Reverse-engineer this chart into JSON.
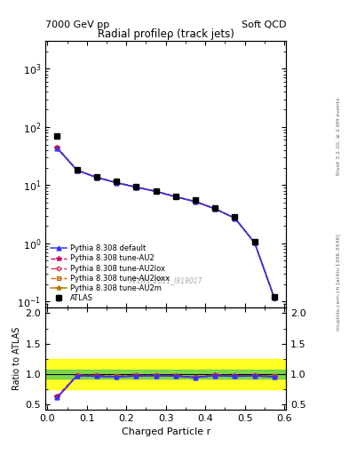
{
  "title": "Radial profileρ (track jets)",
  "top_left": "7000 GeV pp",
  "top_right": "Soft QCD",
  "right_label_top": "Rivet 3.1.10, ≥ 2.6M events",
  "right_label_bottom": "mcplots.cern.ch [arXiv:1306.3436]",
  "watermark": "ATLAS_2011_I919017",
  "xlabel": "Charged Particle r",
  "ylabel_ratio": "Ratio to ATLAS",
  "r_values": [
    0.025,
    0.075,
    0.125,
    0.175,
    0.225,
    0.275,
    0.325,
    0.375,
    0.425,
    0.475,
    0.525,
    0.575
  ],
  "atlas_y": [
    70.0,
    18.5,
    14.0,
    11.5,
    9.5,
    8.0,
    6.5,
    5.5,
    4.0,
    2.8,
    1.05,
    0.12
  ],
  "atlas_yerr": [
    8.0,
    0.9,
    0.6,
    0.5,
    0.4,
    0.35,
    0.3,
    0.25,
    0.18,
    0.12,
    0.06,
    0.015
  ],
  "pythia_default_y": [
    43.0,
    18.0,
    13.5,
    11.0,
    9.2,
    7.8,
    6.3,
    5.2,
    3.9,
    2.7,
    1.02,
    0.115
  ],
  "pythia_au2_y": [
    44.0,
    18.1,
    13.6,
    11.05,
    9.25,
    7.82,
    6.32,
    5.22,
    3.92,
    2.71,
    1.025,
    0.115
  ],
  "pythia_au2lox_y": [
    43.5,
    18.0,
    13.5,
    11.0,
    9.2,
    7.8,
    6.3,
    5.2,
    3.9,
    2.7,
    1.02,
    0.114
  ],
  "pythia_au2loxx_y": [
    44.5,
    18.2,
    13.7,
    11.1,
    9.3,
    7.85,
    6.35,
    5.25,
    3.95,
    2.72,
    1.03,
    0.116
  ],
  "pythia_au2m_y": [
    43.0,
    18.0,
    13.5,
    11.0,
    9.2,
    7.8,
    6.3,
    5.2,
    3.9,
    2.7,
    1.02,
    0.115
  ],
  "band_green_lo": 0.93,
  "band_green_hi": 1.07,
  "band_yellow_lo": 0.75,
  "band_yellow_hi": 1.25,
  "colors": {
    "atlas": "#000000",
    "pythia_default": "#3333ff",
    "pythia_au2": "#cc0066",
    "pythia_au2lox": "#dd3355",
    "pythia_au2loxx": "#cc6600",
    "pythia_au2m": "#bb7700"
  },
  "ylim_main": [
    0.08,
    3000
  ],
  "ylim_ratio": [
    0.42,
    2.1
  ],
  "yticks_ratio": [
    0.5,
    1.0,
    1.5,
    2.0
  ],
  "xlim": [
    -0.005,
    0.605
  ]
}
